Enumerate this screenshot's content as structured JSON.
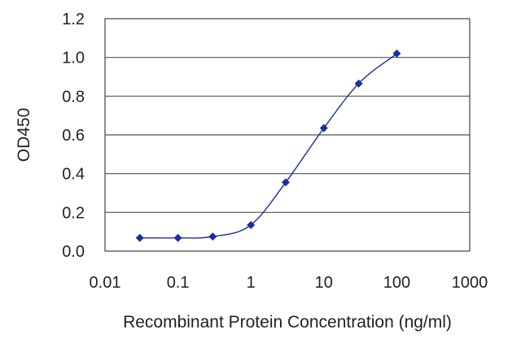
{
  "chart_data": {
    "type": "scatter",
    "title": "",
    "xlabel": "Recombinant Protein Concentration (ng/ml)",
    "ylabel": "OD450",
    "x_scale": "log",
    "xlim": [
      0.01,
      1000
    ],
    "ylim": [
      0.0,
      1.2
    ],
    "x_ticks": [
      0.01,
      0.1,
      1,
      10,
      100,
      1000
    ],
    "x_tick_labels": [
      "0.01",
      "0.1",
      "1",
      "10",
      "100",
      "1000"
    ],
    "y_ticks": [
      0.0,
      0.2,
      0.4,
      0.6,
      0.8,
      1.0,
      1.2
    ],
    "y_tick_labels": [
      "0.0",
      "0.2",
      "0.4",
      "0.6",
      "0.8",
      "1.0",
      "1.2"
    ],
    "grid": "horizontal",
    "legend": "none",
    "series": [
      {
        "points": [
          {
            "x": 0.03,
            "y": 0.068
          },
          {
            "x": 0.1,
            "y": 0.068
          },
          {
            "x": 0.3,
            "y": 0.075
          },
          {
            "x": 1,
            "y": 0.135
          },
          {
            "x": 3,
            "y": 0.355
          },
          {
            "x": 10,
            "y": 0.635
          },
          {
            "x": 30,
            "y": 0.865
          },
          {
            "x": 100,
            "y": 1.02
          }
        ],
        "fit_curve": "sigmoid"
      }
    ],
    "colors": {
      "series": "#1c2f9c",
      "grid": "#555555",
      "axis": "#444444"
    }
  }
}
